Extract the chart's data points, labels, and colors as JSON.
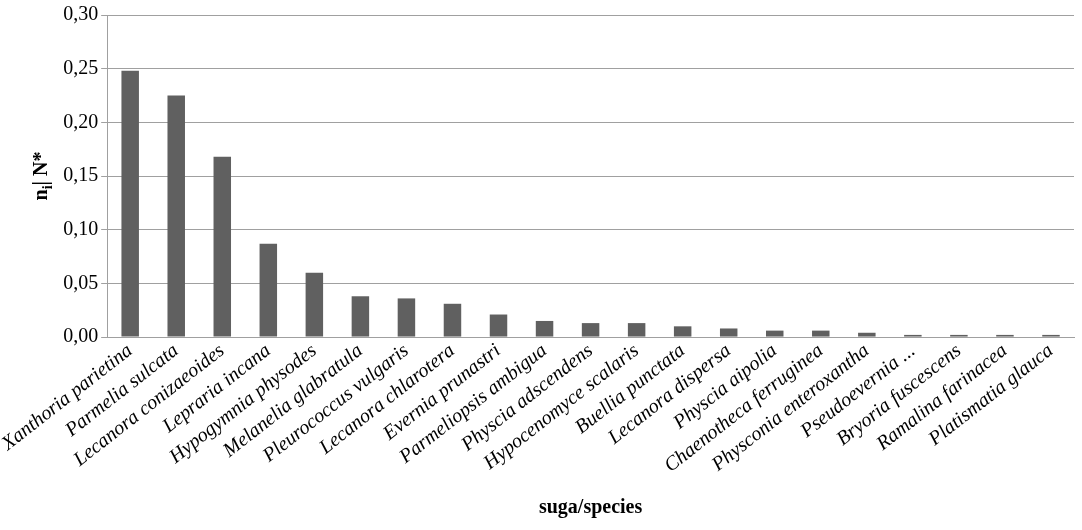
{
  "chart_data": {
    "type": "bar",
    "xlabel": "suga/species",
    "ylabel": "n$_{i}$| N*",
    "categories": [
      "Xanthoria parietina",
      "Parmelia sulcata",
      "Lecanora conizaeoides",
      "Lepraria incana",
      "Hypogymnia physodes",
      "Melanelia glabratula",
      "Pleurococcus vulgaris",
      "Lecanora chlarotera",
      "Evernia prunastri",
      "Parmeliopsis ambigua",
      "Physcia adscendens",
      "Hypocenomyce scalaris",
      "Buellia punctata",
      "Lecanora dispersa",
      "Physcia aipolia",
      "Chaenotheca ferruginea",
      "Physconia enteroxantha",
      "Pseudoevernia ...",
      "Bryoria fuscescens",
      "Ramalina farinacea",
      "Platismatia glauca"
    ],
    "values": [
      0.248,
      0.225,
      0.168,
      0.087,
      0.06,
      0.038,
      0.036,
      0.031,
      0.021,
      0.015,
      0.013,
      0.013,
      0.01,
      0.008,
      0.006,
      0.006,
      0.004,
      0.002,
      0.002,
      0.002,
      0.002
    ],
    "color": "#606060",
    "ylim": [
      0,
      0.3
    ],
    "yticks": [
      {
        "value": 0,
        "label": "0,00"
      },
      {
        "value": 0.05,
        "label": "0,05"
      },
      {
        "value": 0.1,
        "label": "0,10"
      },
      {
        "value": 0.15,
        "label": "0,15"
      },
      {
        "value": 0.2,
        "label": "0,20"
      },
      {
        "value": 0.25,
        "label": "0,25"
      },
      {
        "value": 0.3,
        "label": "0,30"
      }
    ],
    "grid": "y"
  }
}
